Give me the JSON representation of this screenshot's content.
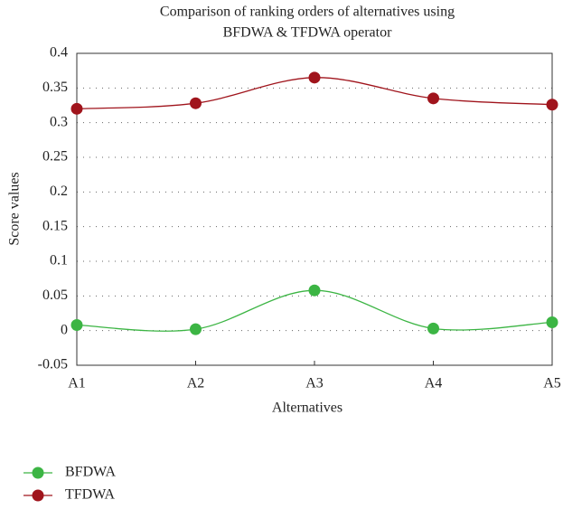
{
  "chart_data": {
    "type": "line",
    "title": [
      "Comparison of ranking orders of alternatives using",
      "BFDWA & TFDWA operator"
    ],
    "x_label": "Alternatives",
    "y_label": "Score values",
    "categories": [
      "A1",
      "A2",
      "A3",
      "A4",
      "A5"
    ],
    "series": [
      {
        "name": "BFDWA",
        "color": "#3cb544",
        "values": [
          0.008,
          0.002,
          0.058,
          0.003,
          0.012
        ]
      },
      {
        "name": "TFDWA",
        "color": "#a0141c",
        "values": [
          0.32,
          0.328,
          0.365,
          0.335,
          0.326
        ]
      }
    ],
    "ylim": [
      -0.05,
      0.4
    ],
    "yticks": [
      -0.05,
      0,
      0.05,
      0.1,
      0.15,
      0.2,
      0.25,
      0.3,
      0.35,
      0.4
    ],
    "grid": true,
    "smooth": true,
    "legend": "bottom-left"
  }
}
